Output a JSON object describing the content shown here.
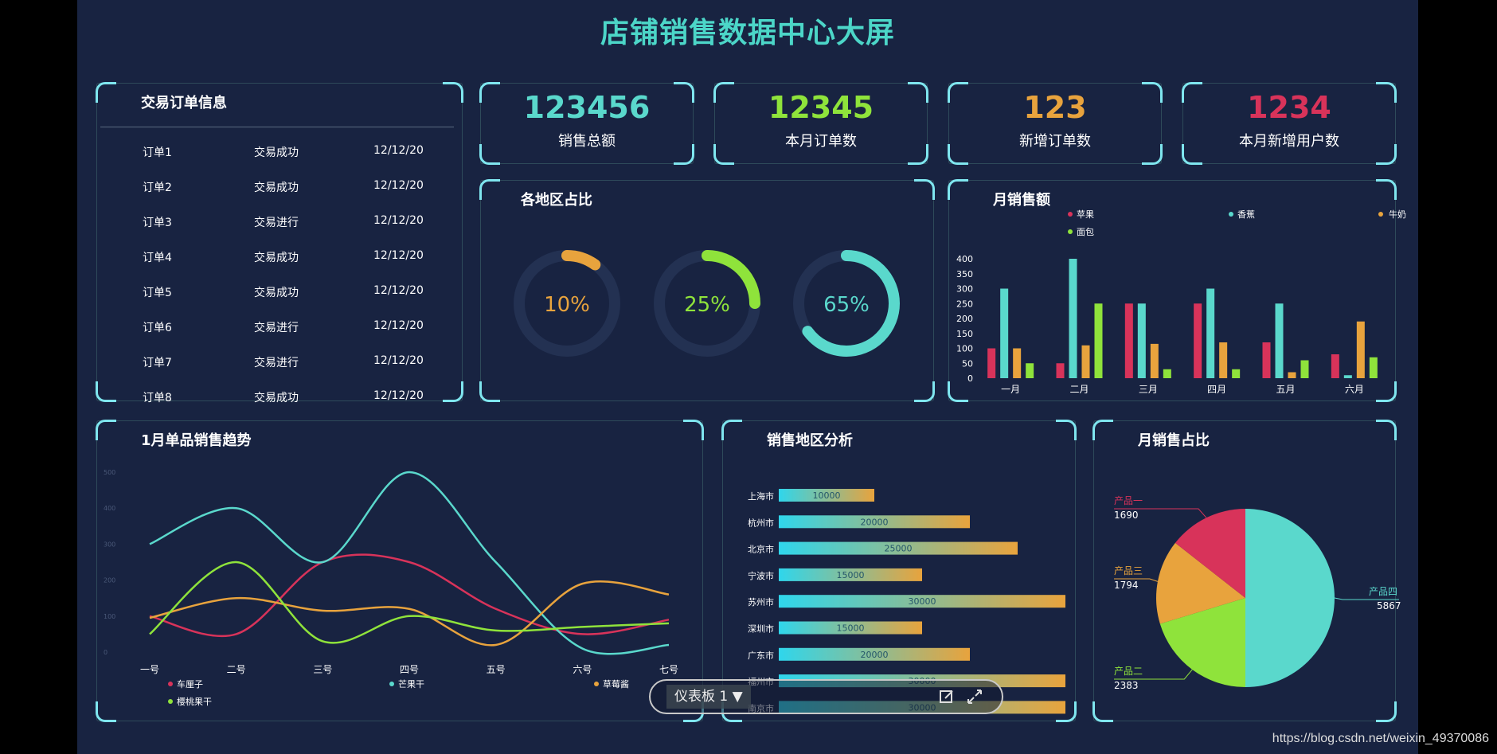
{
  "title": "店铺销售数据中心大屏",
  "orders": {
    "title": "交易订单信息",
    "rows": [
      {
        "name": "订单1",
        "status": "交易成功",
        "date": "12/12/20"
      },
      {
        "name": "订单2",
        "status": "交易成功",
        "date": "12/12/20"
      },
      {
        "name": "订单3",
        "status": "交易进行",
        "date": "12/12/20"
      },
      {
        "name": "订单4",
        "status": "交易成功",
        "date": "12/12/20"
      },
      {
        "name": "订单5",
        "status": "交易成功",
        "date": "12/12/20"
      },
      {
        "name": "订单6",
        "status": "交易进行",
        "date": "12/12/20"
      },
      {
        "name": "订单7",
        "status": "交易进行",
        "date": "12/12/20"
      },
      {
        "name": "订单8",
        "status": "交易成功",
        "date": "12/12/20"
      }
    ]
  },
  "kpis": [
    {
      "value": "123456",
      "label": "销售总额",
      "color": "#5ad8cc"
    },
    {
      "value": "12345",
      "label": "本月订单数",
      "color": "#8fe33b"
    },
    {
      "value": "123",
      "label": "新增订单数",
      "color": "#e8a33d"
    },
    {
      "value": "1234",
      "label": "本月新增用户数",
      "color": "#d8335a"
    }
  ],
  "regions_ratio": {
    "title": "各地区占比",
    "items": [
      {
        "label": "10%",
        "value": 10,
        "color": "#e8a33d"
      },
      {
        "label": "25%",
        "value": 25,
        "color": "#8fe33b"
      },
      {
        "label": "65%",
        "value": 65,
        "color": "#5ad8cc"
      }
    ]
  },
  "monthly_sales": {
    "title": "月销售额",
    "chart_data": {
      "type": "bar",
      "categories": [
        "一月",
        "二月",
        "三月",
        "四月",
        "五月",
        "六月"
      ],
      "series": [
        {
          "name": "苹果",
          "color": "#d8335a",
          "values": [
            100,
            50,
            250,
            250,
            120,
            80
          ]
        },
        {
          "name": "香蕉",
          "color": "#5ad8cc",
          "values": [
            300,
            400,
            250,
            300,
            250,
            10
          ]
        },
        {
          "name": "牛奶",
          "color": "#e8a33d",
          "values": [
            100,
            110,
            115,
            120,
            20,
            190
          ]
        },
        {
          "name": "面包",
          "color": "#8fe33b",
          "values": [
            50,
            250,
            30,
            30,
            60,
            70
          ]
        }
      ],
      "yticks": [
        "0",
        "50",
        "100",
        "150",
        "200",
        "250",
        "300",
        "350",
        "400"
      ],
      "ylim": [
        0,
        400
      ]
    }
  },
  "trend": {
    "title": "1月单品销售趋势",
    "chart_data": {
      "type": "line",
      "categories": [
        "一号",
        "二号",
        "三号",
        "四号",
        "五号",
        "六号",
        "七号"
      ],
      "yticks": [
        "0",
        "100",
        "200",
        "300",
        "400",
        "500"
      ],
      "ylim": [
        0,
        500
      ],
      "series": [
        {
          "name": "车厘子",
          "color": "#d8335a",
          "values": [
            100,
            50,
            250,
            250,
            120,
            50,
            90
          ]
        },
        {
          "name": "芒果干",
          "color": "#5ad8cc",
          "values": [
            300,
            400,
            250,
            500,
            250,
            10,
            20
          ]
        },
        {
          "name": "草莓酱",
          "color": "#e8a33d",
          "values": [
            95,
            150,
            115,
            120,
            20,
            190,
            160
          ]
        },
        {
          "name": "樱桃果干",
          "color": "#8fe33b",
          "values": [
            50,
            250,
            30,
            100,
            60,
            70,
            80
          ]
        }
      ]
    }
  },
  "region_sales": {
    "title": "销售地区分析",
    "chart_data": {
      "type": "bar",
      "orientation": "horizontal",
      "categories": [
        "上海市",
        "杭州市",
        "北京市",
        "宁波市",
        "苏州市",
        "深圳市",
        "广东市",
        "福州市",
        "南京市"
      ],
      "values": [
        10000,
        20000,
        25000,
        15000,
        30000,
        15000,
        20000,
        30000,
        30000
      ],
      "labels": [
        "10000",
        "20000",
        "25000",
        "15000",
        "30000",
        "15000",
        "20000",
        "30000",
        "30000"
      ],
      "xlim": [
        0,
        30000
      ]
    }
  },
  "month_share": {
    "title": "月销售占比",
    "chart_data": {
      "type": "pie",
      "slices": [
        {
          "name": "产品四",
          "value": 5867,
          "display": "5867",
          "color": "#5ad8cc"
        },
        {
          "name": "产品二",
          "value": 2383,
          "display": "2383",
          "color": "#8fe33b"
        },
        {
          "name": "产品三",
          "value": 1794,
          "display": "1794",
          "color": "#e8a33d"
        },
        {
          "name": "产品一",
          "value": 1690,
          "display": "1690",
          "color": "#d8335a"
        }
      ]
    }
  },
  "toolbar": {
    "dashboard_label": "仪表板 1 ▼"
  },
  "watermark": "https://blog.csdn.net/weixin_49370086"
}
